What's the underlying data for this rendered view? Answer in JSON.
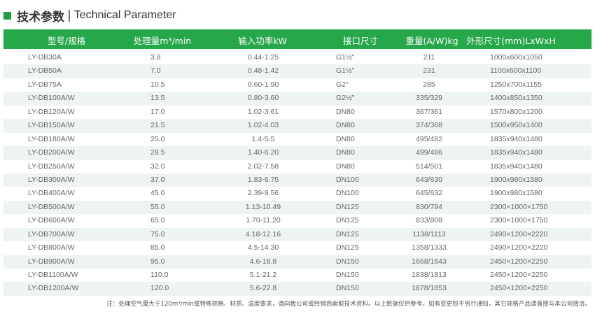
{
  "title": {
    "cn": "技术参数",
    "separator": "|",
    "en": "Technical Parameter"
  },
  "colors": {
    "accent": "#25a74a",
    "row_alt": "#eef3f3"
  },
  "table": {
    "headers": [
      "型号/规格",
      "处理量m³/min",
      "输入功率kW",
      "接口尺寸",
      "重量(A/W)kg",
      "外形尺寸(mm)LxWxH"
    ],
    "rows": [
      [
        "LY-DB30A",
        "3.8",
        "0.44-1.25",
        "G1½\"",
        "211",
        "1000x600x1050"
      ],
      [
        "LY-DB50A",
        "7.0",
        "0.48-1.42",
        "G1½\"",
        "231",
        "1100x600x1100"
      ],
      [
        "LY-DB75A",
        "10.5",
        "0.60-1.90",
        "G2\"",
        "285",
        "1250x700x1155"
      ],
      [
        "LY-DB100A/W",
        "13.5",
        "0.80-3.60",
        "G2½\"",
        "335/329",
        "1400x850x1350"
      ],
      [
        "LY-DB120A/W",
        "17.0",
        "1.02-3.61",
        "DN80",
        "367/361",
        "1570x800x1200"
      ],
      [
        "LY-DB150A/W",
        "21.5",
        "1.02-4.03",
        "DN80",
        "374/368",
        "1500x950x1400"
      ],
      [
        "LY-DB180A/W",
        "25.0",
        "1.4-5.5",
        "DN80",
        "495/482",
        "1835x940x1480"
      ],
      [
        "LY-DB200A/W",
        "28.5",
        "1.40-6.20",
        "DN80",
        "499/486",
        "1835x940x1480"
      ],
      [
        "LY-DB250A/W",
        "32.0",
        "2.02-7.58",
        "DN80",
        "514/501",
        "1835x940x1480"
      ],
      [
        "LY-DB300A/W",
        "37.0",
        "1.83-6.75",
        "DN100",
        "643/630",
        "1900x980x1580"
      ],
      [
        "LY-DB400A/W",
        "45.0",
        "2.39-9.56",
        "DN100",
        "645/632",
        "1900x980x1580"
      ],
      [
        "LY-DB500A/W",
        "55.0",
        "1.13-10.49",
        "DN125",
        "830/794",
        "2300×1000×1750"
      ],
      [
        "LY-DB600A/W",
        "65.0",
        "1.70-11.20",
        "DN125",
        "833/808",
        "2300×1000×1750"
      ],
      [
        "LY-DB700A/W",
        "75.0",
        "4.18-12.16",
        "DN125",
        "1138/1113",
        "2490×1200×2220"
      ],
      [
        "LY-DB800A/W",
        "85.0",
        "4.5-14.30",
        "DN125",
        "1358/1333",
        "2490×1200×2220"
      ],
      [
        "LY-DB900A/W",
        "95.0",
        "4.6-18.8",
        "DN150",
        "1668/1643",
        "2450×1200×2250"
      ],
      [
        "LY-DB1100A/W",
        "110.0",
        "5.1-21.2",
        "DN150",
        "1838/1813",
        "2450×1200×2250"
      ],
      [
        "LY-DB1200A/W",
        "120.0",
        "5.6-22.8",
        "DN150",
        "1878/1853",
        "2450×1200×2250"
      ]
    ]
  },
  "note": "注：处理空气量大于120m³/min或特殊规格、材质、温度要求，请向我公司或经销商索取技术资料。以上数据仅供参考，如有变更恕不另行通知，其它规格产品请直接与本公司接洽。"
}
